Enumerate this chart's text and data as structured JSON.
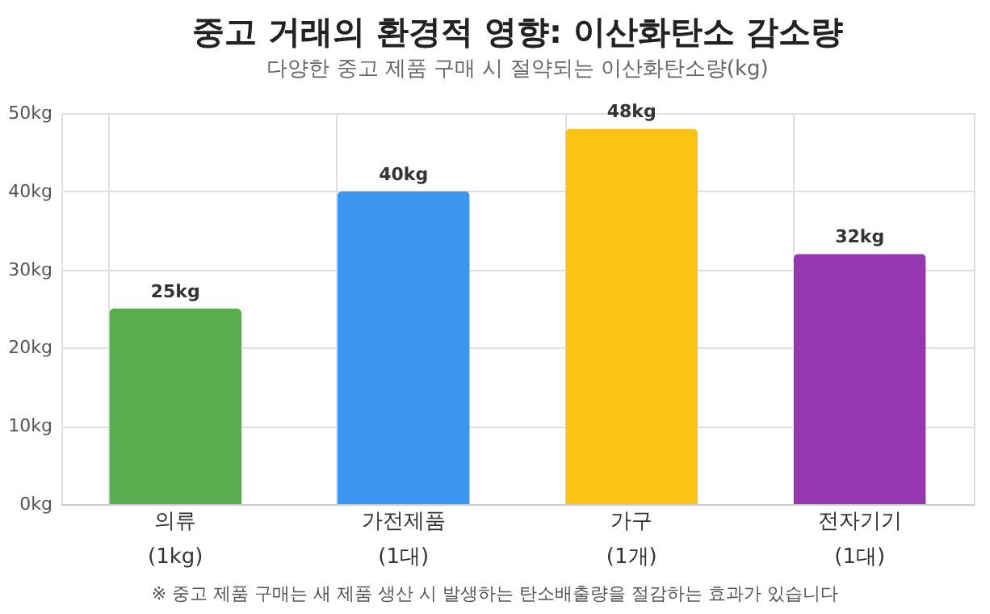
{
  "chart_data": {
    "type": "bar",
    "title": "중고 거래의 환경적 영향: 이산화탄소 감소량",
    "subtitle": "다양한 중고 제품 구매 시 절약되는 이산화탄소량(kg)",
    "categories": [
      "의류\n(1kg)",
      "가전제품\n(1대)",
      "가구\n(1개)",
      "전자기기\n(1대)"
    ],
    "values": [
      25,
      40,
      48,
      32
    ],
    "value_labels": [
      "25kg",
      "40kg",
      "48kg",
      "32kg"
    ],
    "colors": [
      "#5aad4e",
      "#3a96f0",
      "#fbc313",
      "#9636b0"
    ],
    "ylim": [
      0,
      50
    ],
    "yticks": [
      {
        "value": 0,
        "label": "0kg"
      },
      {
        "value": 10,
        "label": "10kg"
      },
      {
        "value": 20,
        "label": "20kg"
      },
      {
        "value": 30,
        "label": "30kg"
      },
      {
        "value": 40,
        "label": "40kg"
      },
      {
        "value": 50,
        "label": "50kg"
      }
    ],
    "grid": true,
    "annotations": [
      "※ 중고 제품 구매는 새 제품 생산 시 발생하는 탄소배출량을 절감하는 효과가 있습니다"
    ]
  }
}
